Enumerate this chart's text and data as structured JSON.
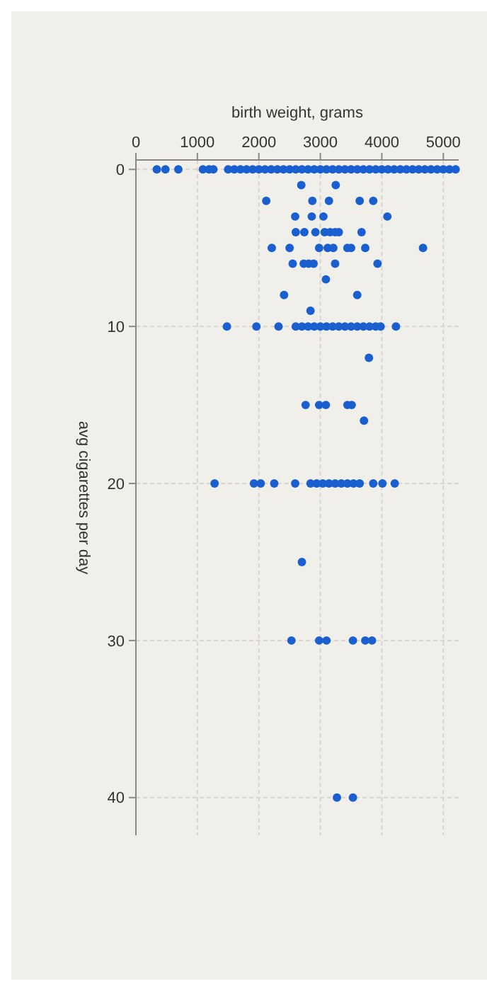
{
  "chart_data": {
    "type": "scatter",
    "xlabel": "birth weight, grams",
    "ylabel": "avg cigarettes per day",
    "xlim": [
      0,
      5250
    ],
    "ylim": [
      42.4,
      -0.6
    ],
    "xticks": [
      0,
      1000,
      2000,
      3000,
      4000,
      5000
    ],
    "yticks": [
      0,
      10,
      20,
      30,
      40
    ],
    "grid": true,
    "marker": "circle",
    "series": [
      {
        "color": "#1a5fcf",
        "x": [
          340,
          480,
          690,
          1090,
          1190,
          1260,
          1500,
          1600,
          1700,
          1800,
          1900,
          2000,
          2100,
          2200,
          2300,
          2400,
          2500,
          2600,
          2700,
          2800,
          2900,
          3000,
          3100,
          3200,
          3300,
          3400,
          3500,
          3600,
          3700,
          3800,
          3900,
          4000,
          4100,
          4200,
          4300,
          4400,
          4500,
          4600,
          4700,
          4800,
          4900,
          5000,
          5100,
          5200,
          2690,
          3250,
          2120,
          2870,
          3140,
          3640,
          3860,
          2590,
          2860,
          3050,
          4090,
          2600,
          2740,
          2920,
          3070,
          3160,
          3240,
          3300,
          3670,
          2210,
          2500,
          2980,
          3120,
          3210,
          3440,
          3500,
          3730,
          4670,
          2550,
          2730,
          2810,
          2890,
          3240,
          3930,
          3090,
          2410,
          3600,
          2840,
          1480,
          1960,
          2320,
          2600,
          2700,
          2800,
          2900,
          3000,
          3100,
          3200,
          3300,
          3400,
          3500,
          3600,
          3700,
          3800,
          3900,
          3980,
          4230,
          3790,
          2760,
          2980,
          3090,
          3440,
          3510,
          3710,
          1280,
          1920,
          2030,
          2250,
          2590,
          2840,
          2940,
          3040,
          3140,
          3240,
          3340,
          3440,
          3540,
          3640,
          3860,
          4010,
          4210,
          2700,
          2530,
          2980,
          3100,
          3530,
          3730,
          3840,
          3270,
          3530
        ],
        "values": [
          0,
          0,
          0,
          0,
          0,
          0,
          0,
          0,
          0,
          0,
          0,
          0,
          0,
          0,
          0,
          0,
          0,
          0,
          0,
          0,
          0,
          0,
          0,
          0,
          0,
          0,
          0,
          0,
          0,
          0,
          0,
          0,
          0,
          0,
          0,
          0,
          0,
          0,
          0,
          0,
          0,
          0,
          0,
          0,
          1,
          1,
          2,
          2,
          2,
          2,
          2,
          3,
          3,
          3,
          3,
          4,
          4,
          4,
          4,
          4,
          4,
          4,
          4,
          5,
          5,
          5,
          5,
          5,
          5,
          5,
          5,
          5,
          6,
          6,
          6,
          6,
          6,
          6,
          7,
          8,
          8,
          9,
          10,
          10,
          10,
          10,
          10,
          10,
          10,
          10,
          10,
          10,
          10,
          10,
          10,
          10,
          10,
          10,
          10,
          10,
          10,
          12,
          15,
          15,
          15,
          15,
          15,
          16,
          20,
          20,
          20,
          20,
          20,
          20,
          20,
          20,
          20,
          20,
          20,
          20,
          20,
          20,
          20,
          20,
          20,
          25,
          30,
          30,
          30,
          30,
          30,
          30,
          40,
          40
        ]
      }
    ]
  }
}
